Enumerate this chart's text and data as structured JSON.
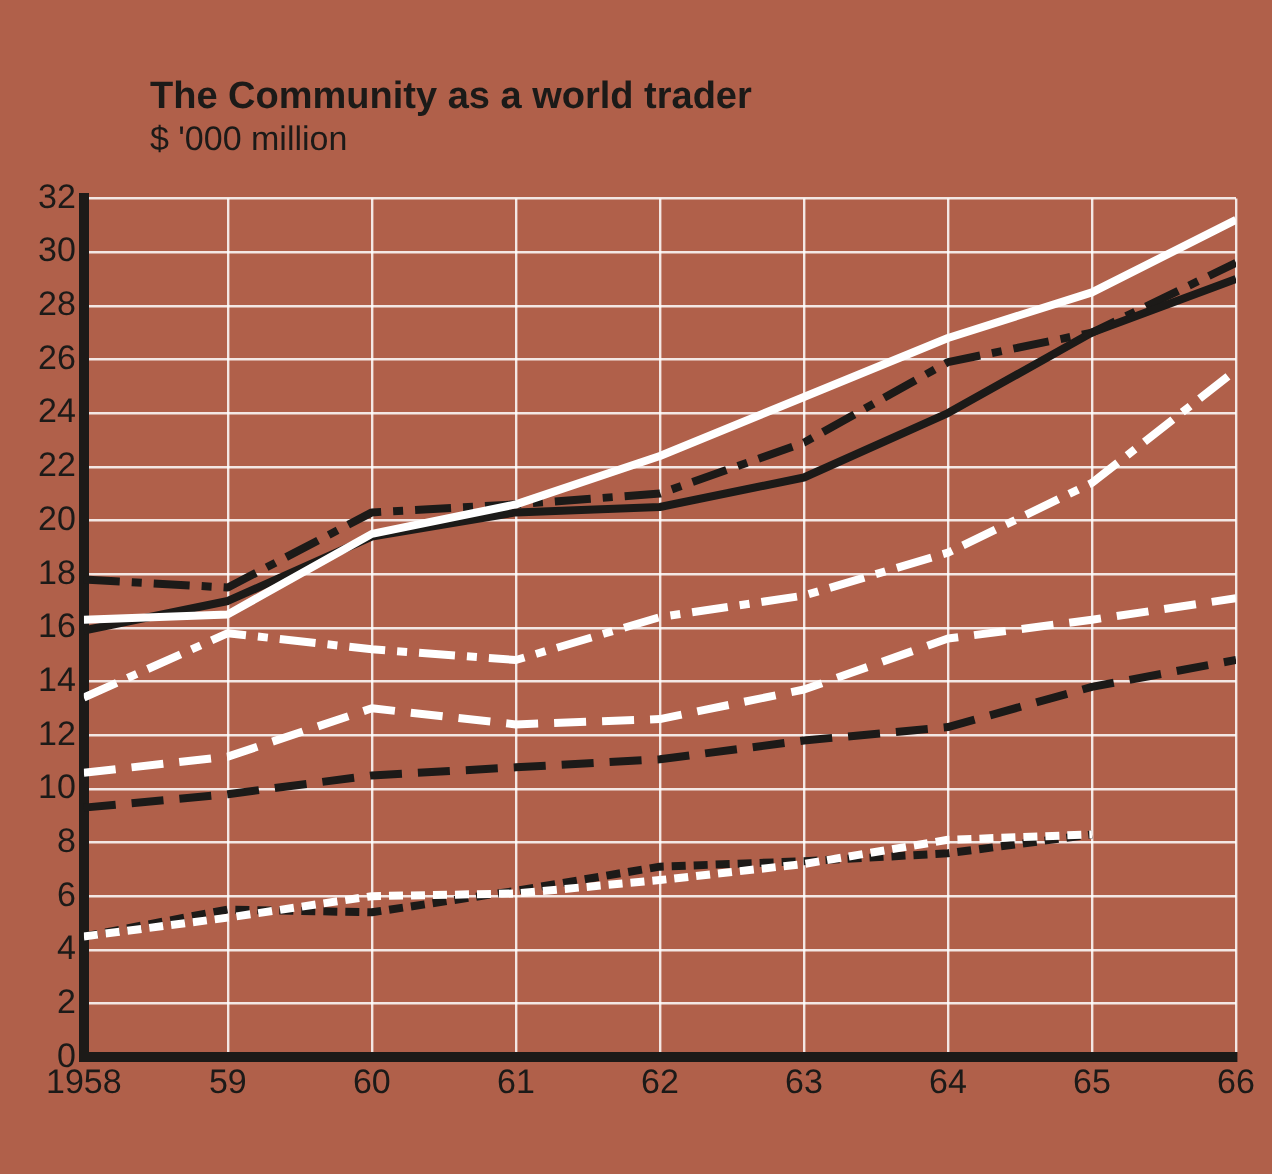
{
  "chart_data": {
    "type": "line",
    "title": "The Community as a world trader",
    "subtitle": "$ '000 million",
    "x": [
      1958,
      1959,
      1960,
      1961,
      1962,
      1963,
      1964,
      1965,
      1966
    ],
    "xlim": [
      1958,
      1966
    ],
    "xticks": [
      1958,
      {
        "value": 1959,
        "label": "59"
      },
      {
        "value": 1960,
        "label": "60"
      },
      {
        "value": 1961,
        "label": "61"
      },
      {
        "value": 1962,
        "label": "62"
      },
      {
        "value": 1963,
        "label": "63"
      },
      {
        "value": 1964,
        "label": "64"
      },
      {
        "value": 1965,
        "label": "65"
      },
      {
        "value": 1966,
        "label": "66"
      }
    ],
    "ylim": [
      0,
      32
    ],
    "yticks": [
      0,
      2,
      4,
      6,
      8,
      10,
      12,
      14,
      16,
      18,
      20,
      22,
      24,
      26,
      28,
      30,
      32
    ],
    "grid": true,
    "legend": false,
    "marker": "none",
    "series": [
      {
        "color": "#ffffff",
        "line_style": "solid",
        "values": [
          16.3,
          16.5,
          19.5,
          20.6,
          22.4,
          24.6,
          26.8,
          28.5,
          31.2
        ]
      },
      {
        "color": "#1c1a18",
        "line_style": "solid",
        "values": [
          15.9,
          17.0,
          19.4,
          20.3,
          20.5,
          21.6,
          24.0,
          27.0,
          29.0
        ]
      },
      {
        "color": "#1c1a18",
        "line_style": "dashdot",
        "values": [
          17.8,
          17.5,
          20.3,
          20.6,
          21.0,
          22.9,
          25.9,
          27.0,
          29.6
        ]
      },
      {
        "color": "#ffffff",
        "line_style": "dashdot",
        "values": [
          13.4,
          15.8,
          15.2,
          14.8,
          16.4,
          17.2,
          18.8,
          21.4,
          25.6
        ]
      },
      {
        "color": "#ffffff",
        "line_style": "dashed",
        "values": [
          10.6,
          11.2,
          13.0,
          12.4,
          12.6,
          13.7,
          15.6,
          16.3,
          17.1
        ]
      },
      {
        "color": "#1c1a18",
        "line_style": "dashed",
        "values": [
          9.3,
          9.8,
          10.5,
          10.8,
          11.1,
          11.8,
          12.3,
          13.8,
          14.8
        ]
      },
      {
        "color": "#ffffff",
        "line_style": "dotted",
        "values": [
          4.5,
          5.2,
          6.0,
          6.1,
          6.6,
          7.2,
          8.1,
          8.3,
          null
        ]
      },
      {
        "color": "#1c1a18",
        "line_style": "dotted",
        "values": [
          4.5,
          5.5,
          5.4,
          6.2,
          7.1,
          7.3,
          7.6,
          8.3,
          null
        ]
      }
    ]
  }
}
